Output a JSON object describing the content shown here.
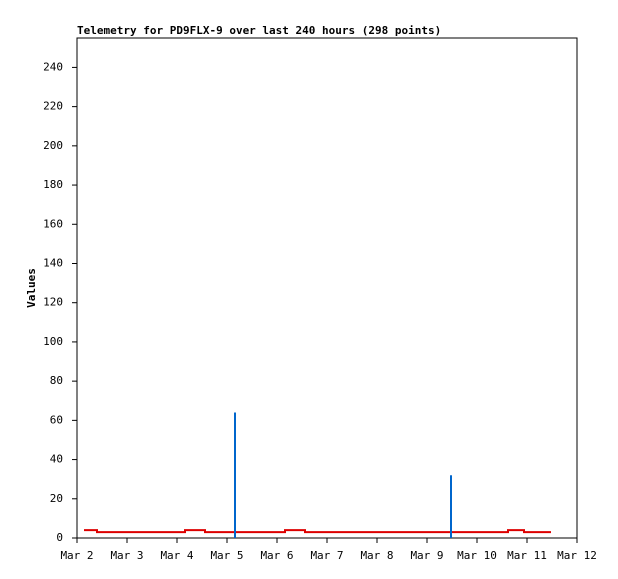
{
  "chart_data": {
    "type": "line",
    "title": "Telemetry for PD9FLX-9 over last 240 hours (298 points)",
    "y_label": "Values",
    "xlim": [
      2,
      12
    ],
    "xticks": [
      {
        "value": 2,
        "label": "Mar 2"
      },
      {
        "value": 3,
        "label": "Mar 3"
      },
      {
        "value": 4,
        "label": "Mar 4"
      },
      {
        "value": 5,
        "label": "Mar 5"
      },
      {
        "value": 6,
        "label": "Mar 6"
      },
      {
        "value": 7,
        "label": "Mar 7"
      },
      {
        "value": 8,
        "label": "Mar 8"
      },
      {
        "value": 9,
        "label": "Mar 9"
      },
      {
        "value": 10,
        "label": "Mar 10"
      },
      {
        "value": 11,
        "label": "Mar 11"
      },
      {
        "value": 12,
        "label": "Mar 12"
      }
    ],
    "ylim": [
      0,
      255
    ],
    "yticks": [
      0,
      20,
      40,
      60,
      80,
      100,
      120,
      140,
      160,
      180,
      200,
      220,
      240
    ],
    "grid": false,
    "series": [
      {
        "color": "#dd0000",
        "style": "line",
        "x": [
          2.14,
          2.4,
          2.4,
          4.16,
          4.16,
          4.56,
          4.56,
          6.16,
          6.16,
          6.56,
          6.56,
          10.62,
          10.62,
          10.94,
          10.94,
          11.48
        ],
        "values": [
          4,
          4,
          3,
          3,
          4,
          4,
          3,
          3,
          4,
          4,
          3,
          3,
          4,
          4,
          3,
          3
        ]
      },
      {
        "color": "#0066cc",
        "style": "impulse",
        "x": [
          5.16,
          9.48
        ],
        "values": [
          64,
          32
        ]
      }
    ]
  }
}
